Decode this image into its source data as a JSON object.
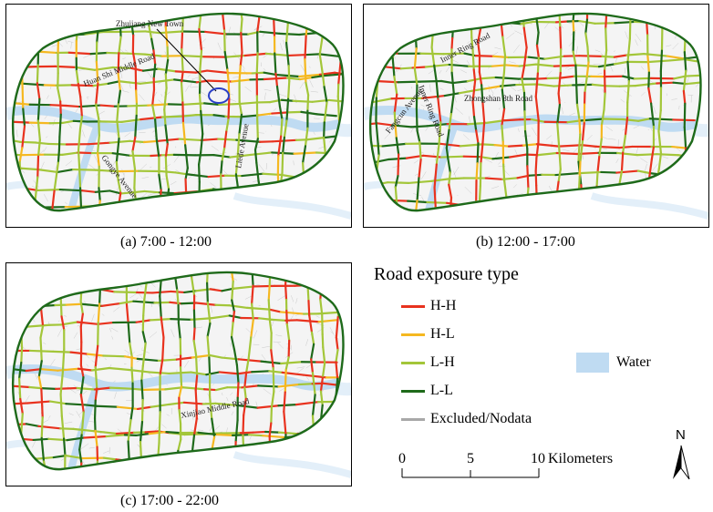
{
  "panels": [
    {
      "id": "a",
      "caption": "(a) 7:00 - 12:00",
      "labels": [
        {
          "text": "Zhujiang New Town"
        },
        {
          "text": "Huan Shi Middle Road"
        },
        {
          "text": "Liede Avenue"
        },
        {
          "text": "Gongye Avenue"
        }
      ]
    },
    {
      "id": "b",
      "caption": "(b) 12:00 - 17:00",
      "labels": [
        {
          "text": "Inner Ring Road"
        },
        {
          "text": "Inner Ring Road"
        },
        {
          "text": "Zhongshan 8th Road"
        },
        {
          "text": "Fangcun Avenue"
        }
      ]
    },
    {
      "id": "c",
      "caption": "(c) 17:00 - 22:00",
      "labels": [
        {
          "text": "Xinjiao Middle Road"
        }
      ]
    }
  ],
  "legend": {
    "title": "Road exposure type",
    "items": [
      {
        "label": "H-H",
        "color": "#e8321e"
      },
      {
        "label": "H-L",
        "color": "#f5b820"
      },
      {
        "label": "L-H",
        "color": "#a3c639"
      },
      {
        "label": "L-L",
        "color": "#1e6a1a"
      },
      {
        "label": "Excluded/Nodata",
        "color": "#a8a8a8"
      }
    ],
    "water": {
      "label": "Water",
      "color": "#bfdbf2"
    }
  },
  "scale_bar": {
    "ticks": [
      "0",
      "5",
      "10"
    ],
    "unit": "Kilometers"
  },
  "north_arrow": {
    "label": "N"
  }
}
